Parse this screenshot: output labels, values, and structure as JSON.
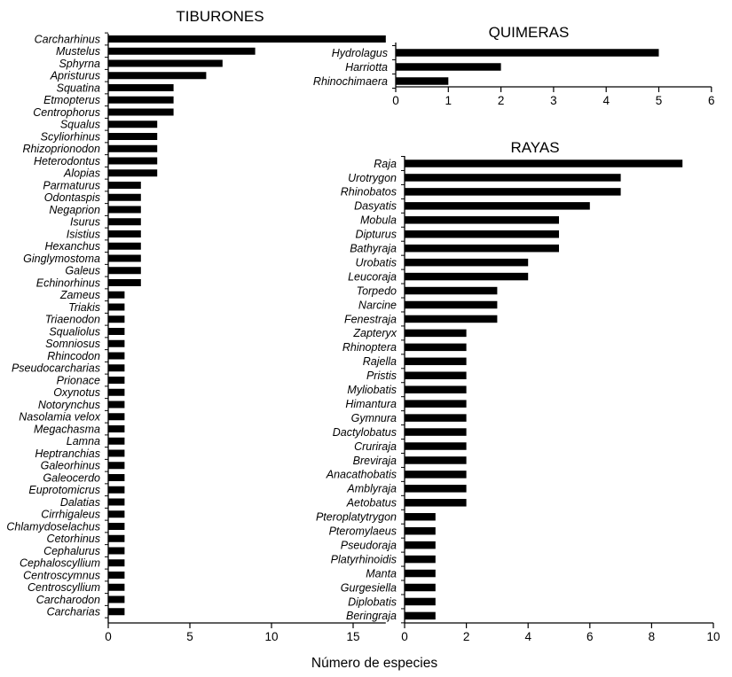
{
  "xlabel": "Número de especies",
  "chart_data": [
    {
      "type": "bar",
      "title": "TIBURONES",
      "xlim": [
        0,
        17
      ],
      "xticks": [
        0,
        5,
        10,
        15
      ],
      "categories": [
        "Carcharhinus",
        "Mustelus",
        "Sphyrna",
        "Apristurus",
        "Squatina",
        "Etmopterus",
        "Centrophorus",
        "Squalus",
        "Scyliorhinus",
        "Rhizoprionodon",
        "Heterodontus",
        "Alopias",
        "Parmaturus",
        "Odontaspis",
        "Negaprion",
        "Isurus",
        "Isistius",
        "Hexanchus",
        "Ginglymostoma",
        "Galeus",
        "Echinorhinus",
        "Zameus",
        "Triakis",
        "Triaenodon",
        "Squaliolus",
        "Somniosus",
        "Rhincodon",
        "Pseudocarcharias",
        "Prionace",
        "Oxynotus",
        "Notorynchus",
        "Nasolamia velox",
        "Megachasma",
        "Lamna",
        "Heptranchias",
        "Galeorhinus",
        "Galeocerdo",
        "Euprotomicrus",
        "Dalatias",
        "Cirrhigaleus",
        "Chlamydoselachus",
        "Cetorhinus",
        "Cephalurus",
        "Cephaloscyllium",
        "Centroscymnus",
        "Centroscyllium",
        "Carcharodon",
        "Carcharias"
      ],
      "values": [
        17,
        9,
        7,
        6,
        4,
        4,
        4,
        3,
        3,
        3,
        3,
        3,
        2,
        2,
        2,
        2,
        2,
        2,
        2,
        2,
        2,
        1,
        1,
        1,
        1,
        1,
        1,
        1,
        1,
        1,
        1,
        1,
        1,
        1,
        1,
        1,
        1,
        1,
        1,
        1,
        1,
        1,
        1,
        1,
        1,
        1,
        1,
        1
      ]
    },
    {
      "type": "bar",
      "title": "QUIMERAS",
      "xlim": [
        0,
        6
      ],
      "xticks": [
        0,
        1,
        2,
        3,
        4,
        5,
        6
      ],
      "categories": [
        "Hydrolagus",
        "Harriotta",
        "Rhinochimaera"
      ],
      "values": [
        5,
        2,
        1
      ]
    },
    {
      "type": "bar",
      "title": "RAYAS",
      "xlim": [
        0,
        10
      ],
      "xticks": [
        0,
        2,
        4,
        6,
        8,
        10
      ],
      "categories": [
        "Raja",
        "Urotrygon",
        "Rhinobatos",
        "Dasyatis",
        "Mobula",
        "Dipturus",
        "Bathyraja",
        "Urobatis",
        "Leucoraja",
        "Torpedo",
        "Narcine",
        "Fenestraja",
        "Zapteryx",
        "Rhinoptera",
        "Rajella",
        "Pristis",
        "Myliobatis",
        "Himantura",
        "Gymnura",
        "Dactylobatus",
        "Cruriraja",
        "Breviraja",
        "Anacathobatis",
        "Amblyraja",
        "Aetobatus",
        "Pteroplatytrygon",
        "Pteromylaeus",
        "Pseudoraja",
        "Platyrhinoidis",
        "Manta",
        "Gurgesiella",
        "Diplobatis",
        "Beringraja"
      ],
      "values": [
        9,
        7,
        7,
        6,
        5,
        5,
        5,
        4,
        4,
        3,
        3,
        3,
        2,
        2,
        2,
        2,
        2,
        2,
        2,
        2,
        2,
        2,
        2,
        2,
        2,
        1,
        1,
        1,
        1,
        1,
        1,
        1,
        1
      ]
    }
  ]
}
